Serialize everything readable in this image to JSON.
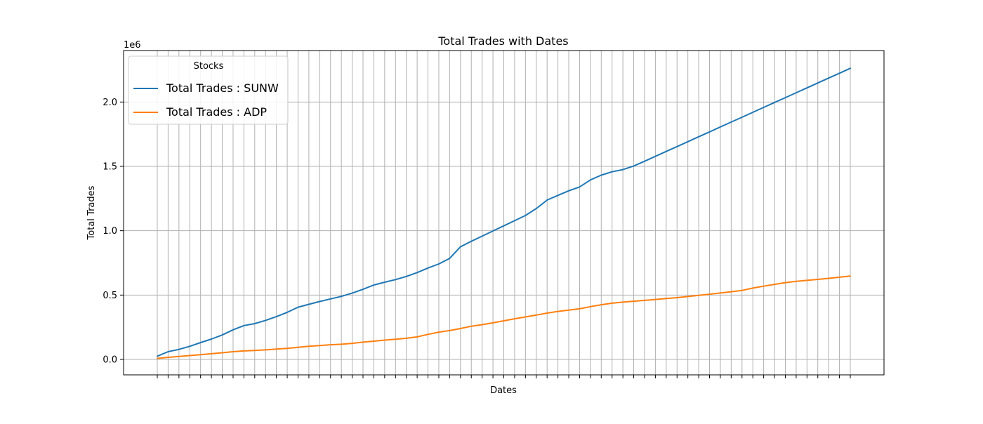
{
  "chart_data": {
    "type": "line",
    "title": "Total Trades with Dates",
    "xlabel": "Dates",
    "ylabel": "Total Trades",
    "y_offset_label": "1e6",
    "y_scale": 1000000,
    "ylim": [
      -120000,
      2400000
    ],
    "y_ticks": [
      0,
      500000,
      1000000,
      1500000,
      2000000
    ],
    "y_tick_labels": [
      "0.0",
      "0.5",
      "1.0",
      "1.5",
      "2.0"
    ],
    "x_tick_labels_visible": false,
    "n_points": 65,
    "grid": true,
    "legend": {
      "title": "Stocks",
      "placement": "top-left"
    },
    "series": [
      {
        "name": "Total Trades : SUNW",
        "color": "#1f77b4",
        "values": [
          25000,
          60000,
          78000,
          102000,
          131000,
          158000,
          190000,
          230000,
          263000,
          278000,
          303000,
          332000,
          366000,
          406000,
          428000,
          450000,
          470000,
          490000,
          515000,
          545000,
          578000,
          600000,
          620000,
          645000,
          675000,
          710000,
          742000,
          785000,
          875000,
          918000,
          958000,
          998000,
          1038000,
          1078000,
          1118000,
          1172000,
          1238000,
          1275000,
          1310000,
          1340000,
          1395000,
          1432000,
          1458000,
          1475000,
          1503000,
          1540000,
          1578000,
          1616000,
          1654000,
          1692000,
          1730000,
          1768000,
          1806000,
          1844000,
          1882000,
          1920000,
          1958000,
          1996000,
          2034000,
          2072000,
          2110000,
          2148000,
          2186000,
          2224000,
          2262000
        ]
      },
      {
        "name": "Total Trades : ADP",
        "color": "#ff7f0e",
        "values": [
          8000,
          16000,
          23000,
          30000,
          37000,
          44000,
          52000,
          60000,
          66000,
          70000,
          74000,
          80000,
          86000,
          94000,
          102000,
          108000,
          114000,
          118000,
          125000,
          134000,
          142000,
          150000,
          157000,
          164000,
          175000,
          195000,
          212000,
          224000,
          240000,
          258000,
          270000,
          284000,
          300000,
          316000,
          330000,
          345000,
          360000,
          373000,
          383000,
          393000,
          410000,
          425000,
          437000,
          445000,
          452000,
          459000,
          466000,
          473000,
          480000,
          489000,
          498000,
          507000,
          516000,
          526000,
          536000,
          554000,
          569000,
          583000,
          597000,
          607000,
          614000,
          622000,
          630000,
          639000,
          648000
        ]
      }
    ]
  }
}
